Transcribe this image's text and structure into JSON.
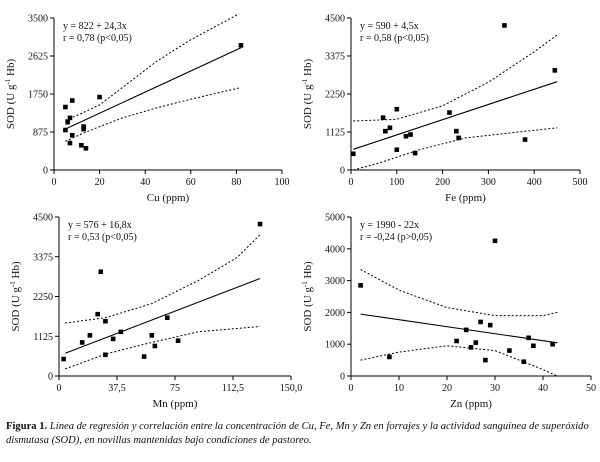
{
  "figure": {
    "label": "Figura 1.",
    "caption": "Línea de regresión y correlación entre la concentración de Cu, Fe, Mn y Zn en forrajes y la actividad sanguínea de superóxido dismutasa (SOD), en novillas mantenidas bajo condiciones de pastoreo."
  },
  "chart_data": [
    {
      "id": "cu",
      "type": "scatter",
      "xlabel": "Cu (ppm)",
      "ylabel_main": "SOD (U g",
      "ylabel_sup": "-1",
      "ylabel_end": " Hb)",
      "equation": "y = 822 + 24,3x",
      "stats": "r = 0,78 (p<0,05)",
      "xlim": [
        0,
        100
      ],
      "ylim": [
        0,
        3500
      ],
      "xticks": [
        0,
        20,
        40,
        60,
        80,
        100
      ],
      "xticklabels": [
        "0",
        "20",
        "40",
        "60",
        "80",
        "100"
      ],
      "yticks": [
        0,
        875,
        1750,
        2625,
        3500
      ],
      "yticklabels": [
        "0",
        "875",
        "1750",
        "2625",
        "3500"
      ],
      "regression": {
        "intercept": 822,
        "slope": 24.3,
        "x_range": [
          5,
          82
        ]
      },
      "ci_upper": [
        [
          5,
          1150
        ],
        [
          12,
          1300
        ],
        [
          20,
          1500
        ],
        [
          30,
          1900
        ],
        [
          45,
          2500
        ],
        [
          60,
          3000
        ],
        [
          82,
          3620
        ]
      ],
      "ci_lower": [
        [
          5,
          660
        ],
        [
          12,
          830
        ],
        [
          20,
          1000
        ],
        [
          30,
          1200
        ],
        [
          45,
          1430
        ],
        [
          60,
          1630
        ],
        [
          82,
          1900
        ]
      ],
      "points": [
        [
          5,
          920
        ],
        [
          5,
          1450
        ],
        [
          6,
          1100
        ],
        [
          7,
          1200
        ],
        [
          7,
          620
        ],
        [
          8,
          1600
        ],
        [
          8,
          800
        ],
        [
          12,
          570
        ],
        [
          13,
          940
        ],
        [
          13,
          1000
        ],
        [
          14,
          500
        ],
        [
          20,
          1680
        ],
        [
          82,
          2870
        ]
      ]
    },
    {
      "id": "fe",
      "type": "scatter",
      "xlabel": "Fe (ppm)",
      "ylabel_main": "SOD (U g",
      "ylabel_sup": "-1",
      "ylabel_end": " Hb)",
      "equation": "y = 590 + 4,5x",
      "stats": "r = 0,58 (p<0,05)",
      "xlim": [
        0,
        500
      ],
      "ylim": [
        0,
        4500
      ],
      "xticks": [
        0,
        100,
        200,
        300,
        400,
        500
      ],
      "xticklabels": [
        "0",
        "100",
        "200",
        "300",
        "400",
        "500"
      ],
      "yticks": [
        0,
        1125,
        2250,
        3375,
        4500
      ],
      "yticklabels": [
        "0",
        "1125",
        "2250",
        "3375",
        "4500"
      ],
      "regression": {
        "intercept": 590,
        "slope": 4.5,
        "x_range": [
          5,
          450
        ]
      },
      "ci_upper": [
        [
          5,
          1450
        ],
        [
          100,
          1500
        ],
        [
          200,
          1900
        ],
        [
          300,
          2600
        ],
        [
          400,
          3500
        ],
        [
          450,
          4000
        ]
      ],
      "ci_lower": [
        [
          5,
          0
        ],
        [
          60,
          200
        ],
        [
          150,
          600
        ],
        [
          250,
          950
        ],
        [
          350,
          1100
        ],
        [
          450,
          1250
        ]
      ],
      "points": [
        [
          5,
          480
        ],
        [
          70,
          1550
        ],
        [
          75,
          1150
        ],
        [
          85,
          1250
        ],
        [
          100,
          1800
        ],
        [
          100,
          600
        ],
        [
          120,
          1000
        ],
        [
          130,
          1050
        ],
        [
          140,
          500
        ],
        [
          215,
          1700
        ],
        [
          230,
          1150
        ],
        [
          235,
          950
        ],
        [
          335,
          4280
        ],
        [
          380,
          900
        ],
        [
          445,
          2950
        ]
      ]
    },
    {
      "id": "mn",
      "type": "scatter",
      "xlabel": "Mn (ppm)",
      "ylabel_main": "SOD (U g",
      "ylabel_sup": "-1",
      "ylabel_end": " Hb)",
      "equation": "y = 576 + 16,8x",
      "stats": "r = 0,53 (p<0,05)",
      "xlim": [
        0,
        150
      ],
      "ylim": [
        0,
        4500
      ],
      "xticks": [
        0,
        37.5,
        75,
        112.5,
        150
      ],
      "xticklabels": [
        "0",
        "37,5",
        "75",
        "112,5",
        "150,0"
      ],
      "yticks": [
        0,
        1125,
        2250,
        3375,
        4500
      ],
      "yticklabels": [
        "0",
        "1125",
        "2250",
        "3375",
        "4500"
      ],
      "regression": {
        "intercept": 576,
        "slope": 16.8,
        "x_range": [
          4,
          130
        ]
      },
      "ci_upper": [
        [
          4,
          1500
        ],
        [
          30,
          1650
        ],
        [
          60,
          2050
        ],
        [
          90,
          2700
        ],
        [
          115,
          3350
        ],
        [
          130,
          4000
        ]
      ],
      "ci_lower": [
        [
          4,
          200
        ],
        [
          30,
          620
        ],
        [
          60,
          950
        ],
        [
          90,
          1250
        ],
        [
          130,
          1400
        ]
      ],
      "points": [
        [
          3,
          480
        ],
        [
          15,
          950
        ],
        [
          20,
          1150
        ],
        [
          25,
          1750
        ],
        [
          27,
          2950
        ],
        [
          30,
          1550
        ],
        [
          30,
          600
        ],
        [
          35,
          1050
        ],
        [
          40,
          1250
        ],
        [
          55,
          550
        ],
        [
          60,
          1150
        ],
        [
          62,
          850
        ],
        [
          70,
          1650
        ],
        [
          77,
          1000
        ],
        [
          130,
          4300
        ]
      ]
    },
    {
      "id": "zn",
      "type": "scatter",
      "xlabel": "Zn (ppm)",
      "ylabel_main": "SOD (U g",
      "ylabel_sup": "-1",
      "ylabel_end": " Hb)",
      "equation": "y = 1990 - 22x",
      "stats": "r = -0,24 (p>0,05)",
      "xlim": [
        0,
        50
      ],
      "ylim": [
        0,
        5000
      ],
      "xticks": [
        0,
        10,
        20,
        30,
        40,
        50
      ],
      "xticklabels": [
        "0",
        "10",
        "20",
        "30",
        "40",
        "50"
      ],
      "yticks": [
        0,
        1000,
        2000,
        3000,
        4000,
        5000
      ],
      "yticklabels": [
        "0",
        "1000",
        "2000",
        "3000",
        "4000",
        "5000"
      ],
      "regression": {
        "intercept": 1990,
        "slope": -22,
        "x_range": [
          2,
          43
        ]
      },
      "ci_upper": [
        [
          2,
          3350
        ],
        [
          10,
          2700
        ],
        [
          20,
          2150
        ],
        [
          30,
          1900
        ],
        [
          40,
          1900
        ],
        [
          43,
          2000
        ]
      ],
      "ci_lower": [
        [
          2,
          500
        ],
        [
          10,
          750
        ],
        [
          20,
          950
        ],
        [
          30,
          800
        ],
        [
          40,
          200
        ],
        [
          43,
          0
        ]
      ],
      "points": [
        [
          2,
          2850
        ],
        [
          8,
          600
        ],
        [
          22,
          1100
        ],
        [
          24,
          1450
        ],
        [
          25,
          900
        ],
        [
          26,
          1050
        ],
        [
          27,
          1700
        ],
        [
          28,
          500
        ],
        [
          29,
          1600
        ],
        [
          30,
          4250
        ],
        [
          33,
          800
        ],
        [
          36,
          450
        ],
        [
          37,
          1200
        ],
        [
          38,
          950
        ],
        [
          42,
          1000
        ]
      ]
    }
  ]
}
